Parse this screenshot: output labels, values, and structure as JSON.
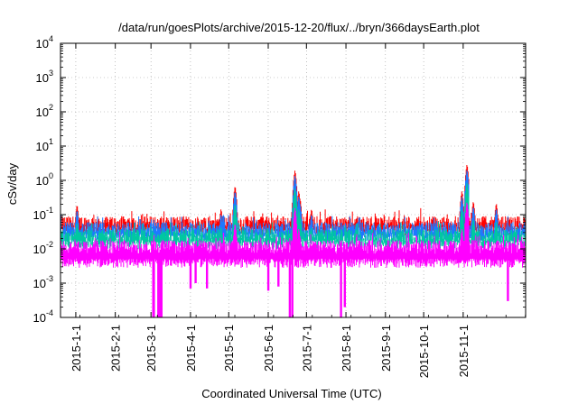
{
  "chart_data": {
    "type": "line",
    "title": "/data/run/goesPlots/archive/2015-12-20/flux/../bryn/366daysEarth.plot",
    "xlabel": "Coordinated Universal Time (UTC)",
    "ylabel": "cSv/day",
    "y_scale": "log",
    "ylim": [
      0.0001,
      10000
    ],
    "xlim": [
      "2014-12-20",
      "2015-12-20"
    ],
    "grid": true,
    "legend": "none",
    "y_ticks": [
      {
        "value": 0.0001,
        "base": "10",
        "exp": "-4"
      },
      {
        "value": 0.001,
        "base": "10",
        "exp": "-3"
      },
      {
        "value": 0.01,
        "base": "10",
        "exp": "-2"
      },
      {
        "value": 0.1,
        "base": "10",
        "exp": "-1"
      },
      {
        "value": 1,
        "base": "10",
        "exp": "0"
      },
      {
        "value": 10,
        "base": "10",
        "exp": "1"
      },
      {
        "value": 100,
        "base": "10",
        "exp": "2"
      },
      {
        "value": 1000,
        "base": "10",
        "exp": "3"
      },
      {
        "value": 10000,
        "base": "10",
        "exp": "4"
      }
    ],
    "x_ticks": [
      "2015-1-1",
      "2015-2-1",
      "2015-3-1",
      "2015-4-1",
      "2015-5-1",
      "2015-6-1",
      "2015-7-1",
      "2015-8-1",
      "2015-9-1",
      "2015-10-1",
      "2015-11-1"
    ],
    "series": [
      {
        "color": "#ff0000",
        "baseline": 0.06,
        "low": 0.035
      },
      {
        "color": "#1e78ff",
        "baseline": 0.04,
        "low": 0.022
      },
      {
        "color": "#00c8a0",
        "baseline": 0.025,
        "low": 0.014
      },
      {
        "color": "#ff00ff",
        "baseline": 0.012,
        "low": 0.004
      }
    ],
    "peaks": [
      {
        "date": "2015-1-2",
        "value": 0.2
      },
      {
        "date": "2015-4-25",
        "value": 0.15
      },
      {
        "date": "2015-5-6",
        "value": 0.7
      },
      {
        "date": "2015-6-21",
        "value": 0.45
      },
      {
        "date": "2015-6-22",
        "value": 2.0
      },
      {
        "date": "2015-6-25",
        "value": 0.5
      },
      {
        "date": "2015-6-26",
        "value": 0.3
      },
      {
        "date": "2015-7-5",
        "value": 0.15
      },
      {
        "date": "2015-10-31",
        "value": 0.5
      },
      {
        "date": "2015-11-4",
        "value": 3.0
      },
      {
        "date": "2015-11-9",
        "value": 0.25
      },
      {
        "date": "2015-11-27",
        "value": 0.22
      }
    ],
    "dips": [
      {
        "date": "2015-3-3",
        "value": 0.0001
      },
      {
        "date": "2015-3-7",
        "value": 0.0001
      },
      {
        "date": "2015-3-9",
        "value": 0.0001
      },
      {
        "date": "2015-4-1",
        "value": 0.0007
      },
      {
        "date": "2015-4-5",
        "value": 0.001
      },
      {
        "date": "2015-4-14",
        "value": 0.0007
      },
      {
        "date": "2015-6-1",
        "value": 0.0006
      },
      {
        "date": "2015-6-9",
        "value": 0.0008
      },
      {
        "date": "2015-6-18",
        "value": 0.0001
      },
      {
        "date": "2015-6-20",
        "value": 0.0001
      },
      {
        "date": "2015-7-28",
        "value": 0.0001
      },
      {
        "date": "2015-7-31",
        "value": 0.0002
      },
      {
        "date": "2015-12-6",
        "value": 0.0003
      }
    ]
  }
}
